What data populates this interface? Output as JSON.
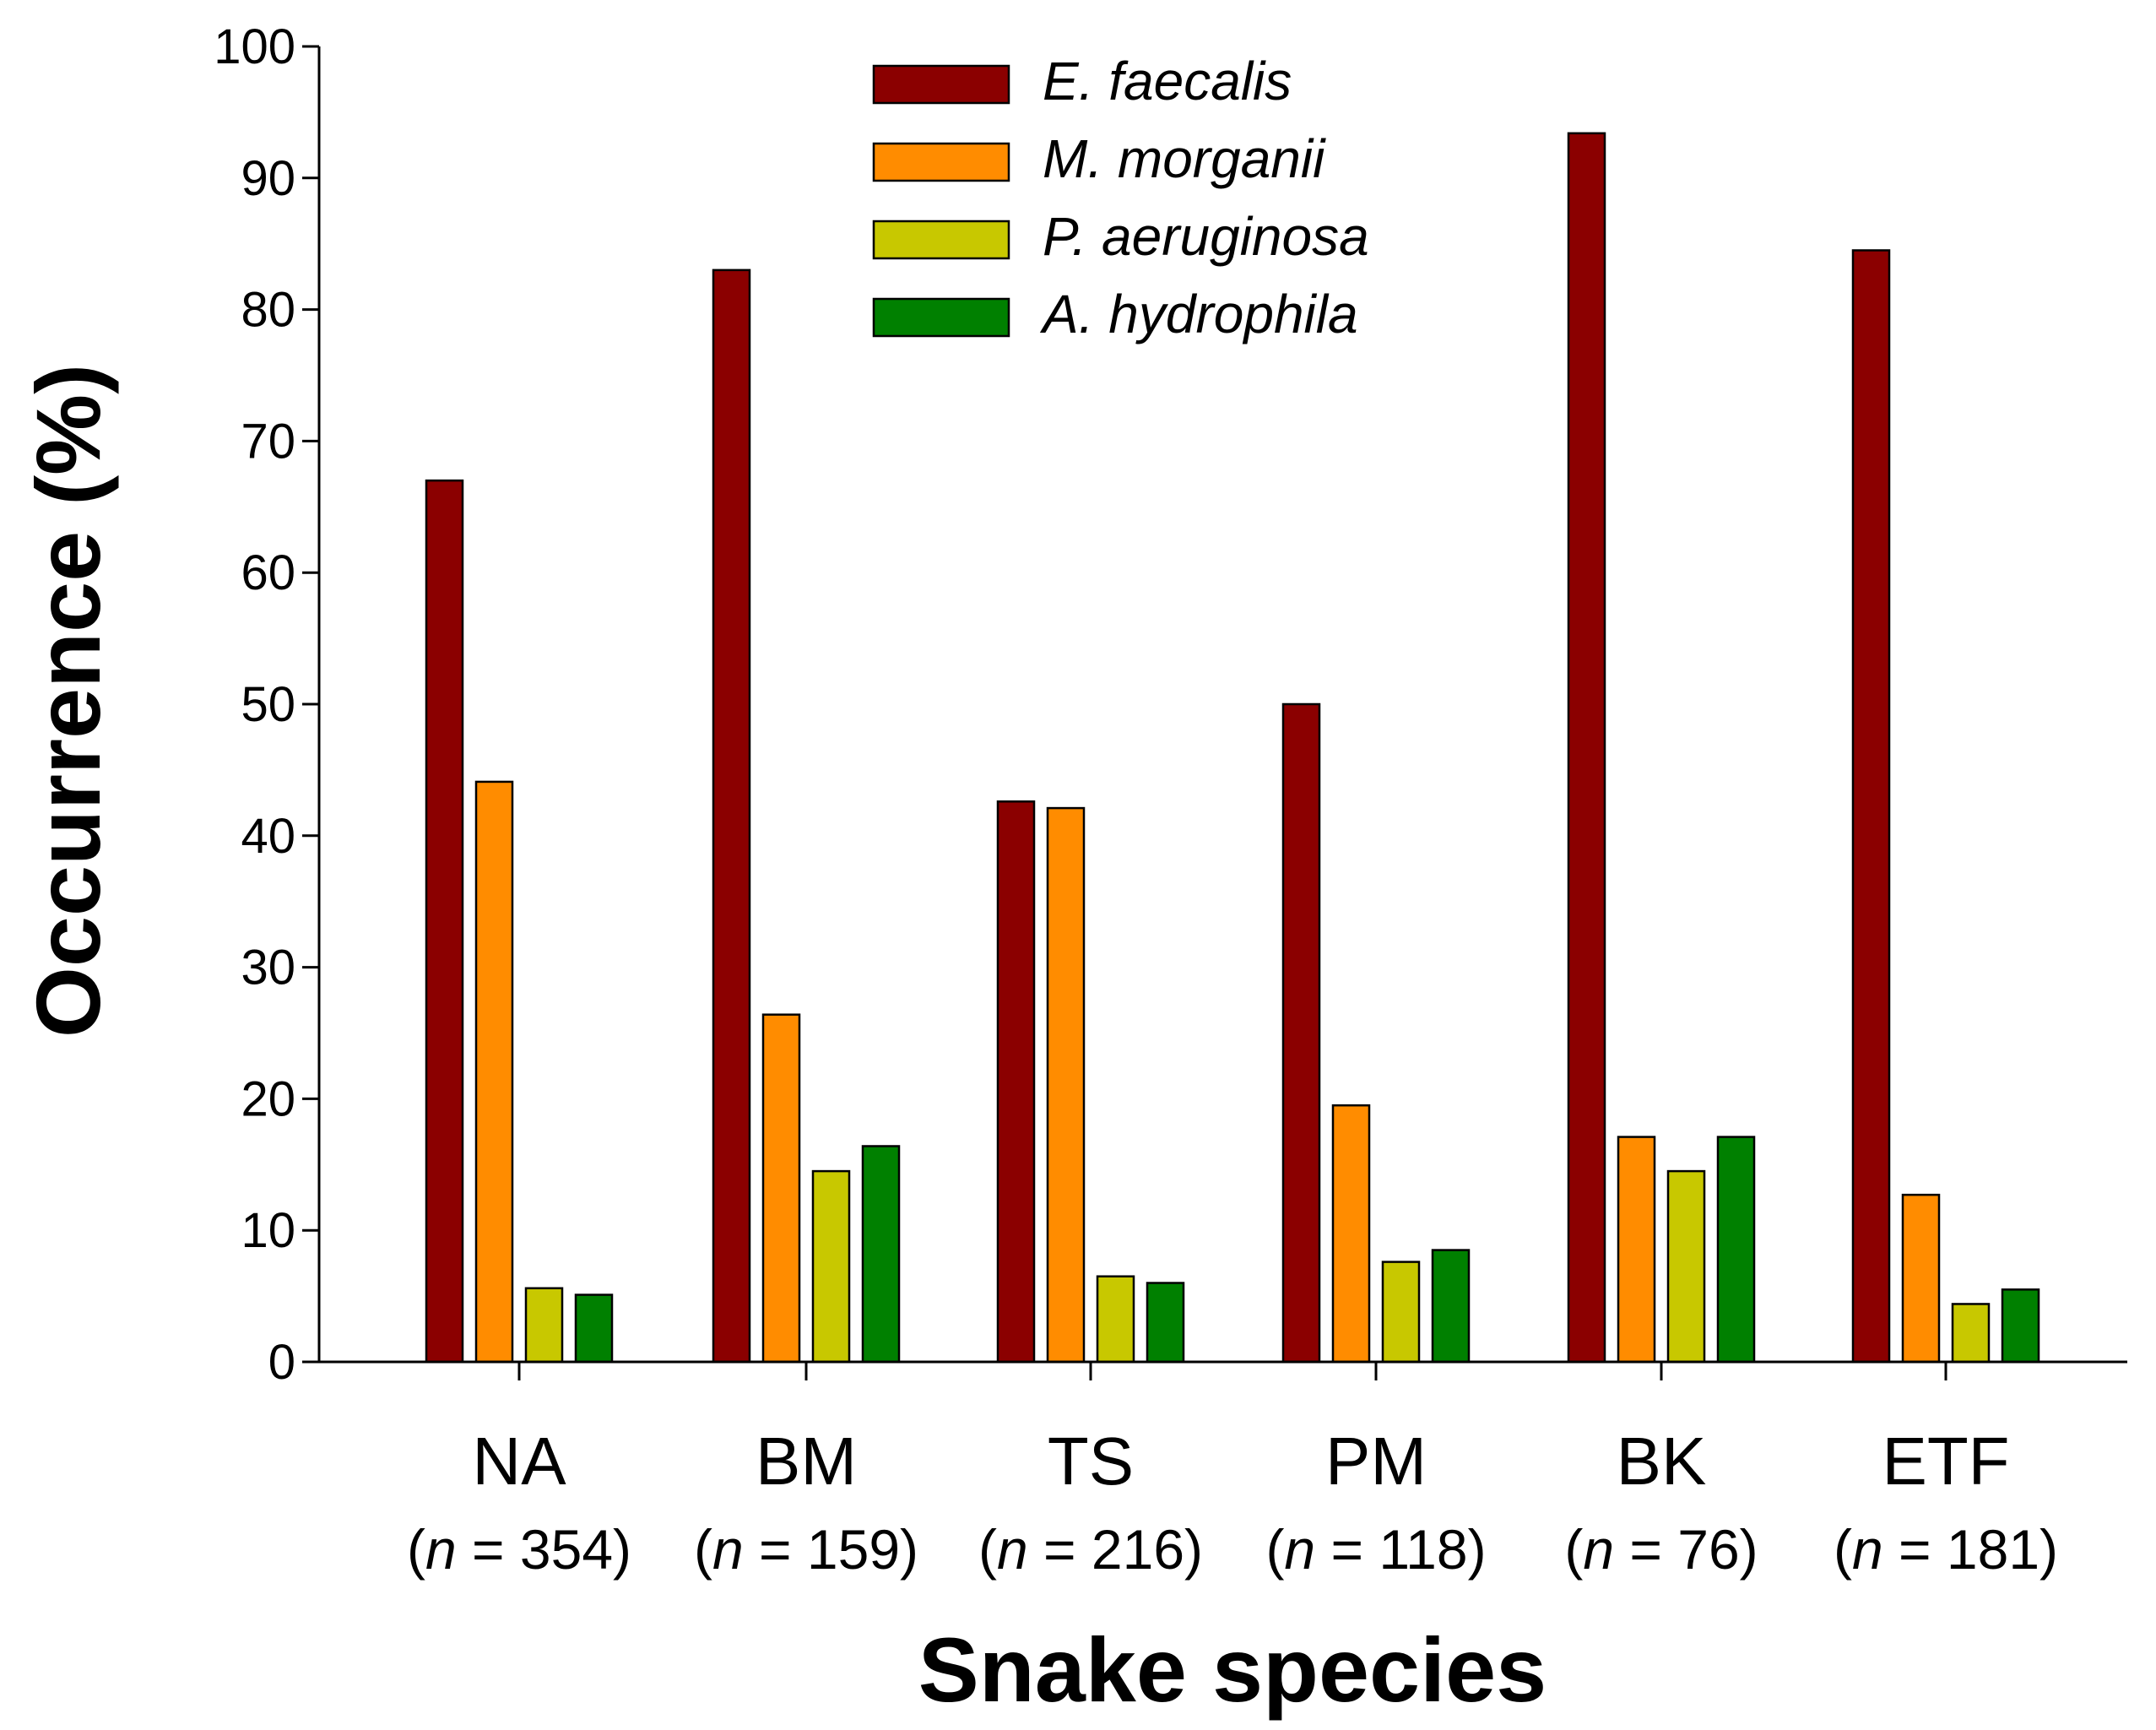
{
  "chart_data": {
    "type": "bar",
    "title": "",
    "xlabel": "Snake species",
    "ylabel": "Occurrence (%)",
    "ylim": [
      0,
      100
    ],
    "yticks": [
      0,
      10,
      20,
      30,
      40,
      50,
      60,
      70,
      80,
      90,
      100
    ],
    "grid": false,
    "legend_position": "top-center",
    "categories": [
      "NA",
      "BM",
      "TS",
      "PM",
      "BK",
      "ETF"
    ],
    "sample_sizes": [
      {
        "prefix": "(",
        "n": "n",
        "eq": " = 354)"
      },
      {
        "prefix": "(",
        "n": "n",
        "eq": " = 159)"
      },
      {
        "prefix": "(",
        "n": "n",
        "eq": " = 216)"
      },
      {
        "prefix": "(",
        "n": "n",
        "eq": " = 118)"
      },
      {
        "prefix": "(",
        "n": "n",
        "eq": " = 76)"
      },
      {
        "prefix": "(",
        "n": "n",
        "eq": " = 181)"
      }
    ],
    "series": [
      {
        "name": "E. faecalis",
        "color": "#8b0000",
        "values": [
          67.0,
          83.0,
          42.6,
          50.0,
          93.4,
          84.5
        ]
      },
      {
        "name": "M. morganii",
        "color": "#ff8c00",
        "values": [
          44.1,
          26.4,
          42.1,
          19.5,
          17.1,
          12.7
        ]
      },
      {
        "name": "P. aeruginosa",
        "color": "#c8c800",
        "values": [
          5.6,
          14.5,
          6.5,
          7.6,
          14.5,
          4.4
        ]
      },
      {
        "name": "A. hydrophila",
        "color": "#008000",
        "values": [
          5.1,
          16.4,
          6.0,
          8.5,
          17.1,
          5.5
        ]
      }
    ]
  }
}
